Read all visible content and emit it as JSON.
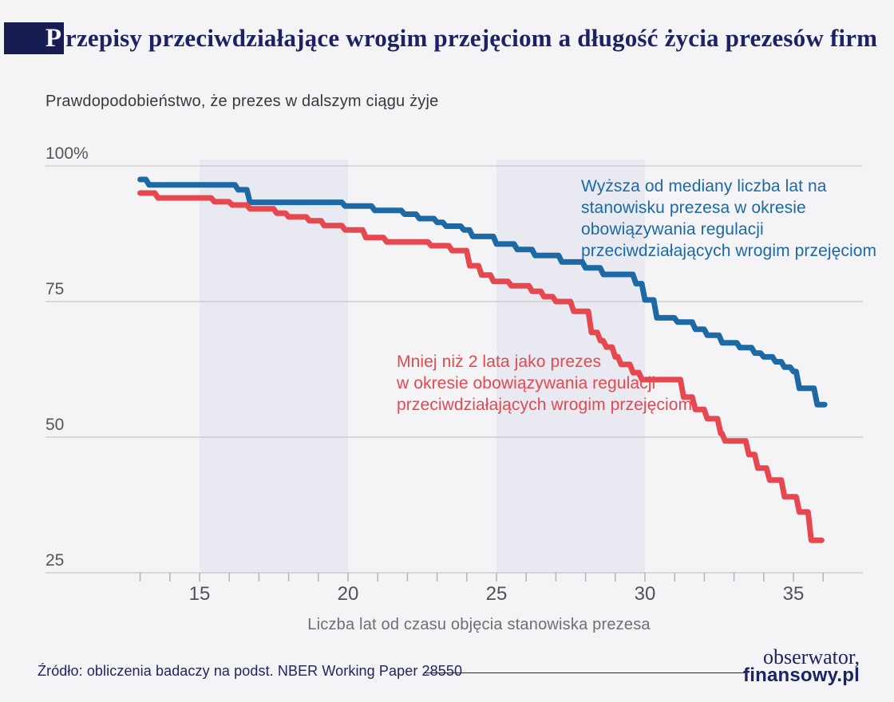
{
  "header": {
    "title_first_letter": "P",
    "title_rest": "rzepisy przeciwdziałające wrogim przejęciom a długość życia prezesów firm",
    "subtitle": "Prawdopodobieństwo, że prezes w dalszym ciągu żyje"
  },
  "chart_data": {
    "type": "line",
    "subtype": "step-survival-curves",
    "title": "Prawdopodobieństwo, że prezes w dalszym ciągu żyje",
    "xlabel": "Liczba lat od czasu objęcia stanowiska prezesa",
    "ylabel": "%",
    "xlim": [
      12.8,
      37.3
    ],
    "ylim": [
      25,
      100
    ],
    "grid": true,
    "y_ticks": [
      {
        "label": "100%",
        "value": 100
      },
      {
        "label": "75",
        "value": 75
      },
      {
        "label": "50",
        "value": 50
      },
      {
        "label": "25",
        "value": 25
      }
    ],
    "x_ticks_labeled": [
      15,
      20,
      25,
      30,
      35
    ],
    "x_minor_ticks": {
      "from": 13,
      "to": 36,
      "step": 1
    },
    "shaded_bands_years": [
      [
        15,
        20
      ],
      [
        25,
        30
      ]
    ],
    "colors": {
      "blue": "#1c69a6",
      "red": "#e5484f",
      "band": "#e9e9f1",
      "grid": "#c6c6ca",
      "tick": "#b4b4b9"
    },
    "series": [
      {
        "name": "blue",
        "label": "Wyższa od mediany liczba lat na\nstanowisku prezesa w okresie\nobowiązywania regulacji\nprzeciwdziałających wrogim przejęciom",
        "color": "#1c69a6",
        "end_year": 36.05,
        "points": [
          [
            13,
            97.5
          ],
          [
            13.3,
            96.5
          ],
          [
            16.3,
            95.6
          ],
          [
            16.7,
            93.3
          ],
          [
            19.9,
            92.6
          ],
          [
            20.9,
            91.8
          ],
          [
            21.9,
            91.1
          ],
          [
            22.4,
            90.3
          ],
          [
            23,
            89.6
          ],
          [
            23.3,
            88.9
          ],
          [
            23.9,
            88.2
          ],
          [
            24.2,
            87
          ],
          [
            25,
            85.6
          ],
          [
            25.7,
            84.6
          ],
          [
            26.3,
            83.5
          ],
          [
            27.2,
            82.3
          ],
          [
            28,
            81.2
          ],
          [
            28.6,
            80
          ],
          [
            29.7,
            78.3
          ],
          [
            30,
            75.3
          ],
          [
            30.4,
            72
          ],
          [
            31.1,
            71.2
          ],
          [
            31.7,
            69.9
          ],
          [
            32.1,
            68.8
          ],
          [
            32.6,
            67.4
          ],
          [
            33.2,
            66.5
          ],
          [
            33.7,
            65.5
          ],
          [
            34,
            64.8
          ],
          [
            34.4,
            63.9
          ],
          [
            34.7,
            62.9
          ],
          [
            35,
            62.1
          ],
          [
            35.2,
            59
          ],
          [
            35.8,
            56
          ]
        ]
      },
      {
        "name": "red",
        "label": "Mniej niż 2 lata jako prezes\nw okresie obowiązywania regulacji\nprzeciwdziałających wrogim przejęciom",
        "color": "#e5484f",
        "end_year": 35.95,
        "points": [
          [
            13,
            95
          ],
          [
            13.6,
            94.1
          ],
          [
            15.5,
            93.4
          ],
          [
            16.1,
            92.8
          ],
          [
            16.7,
            92.1
          ],
          [
            17.6,
            91.3
          ],
          [
            18,
            90.6
          ],
          [
            18.7,
            89.9
          ],
          [
            19.2,
            89
          ],
          [
            19.9,
            88.2
          ],
          [
            20.6,
            86.8
          ],
          [
            21.3,
            86
          ],
          [
            22.8,
            85.3
          ],
          [
            23.5,
            84.4
          ],
          [
            24.1,
            81.6
          ],
          [
            24.5,
            79.9
          ],
          [
            24.9,
            78.7
          ],
          [
            25.5,
            77.9
          ],
          [
            26.2,
            76.9
          ],
          [
            26.6,
            75.9
          ],
          [
            27,
            75
          ],
          [
            27.6,
            73.2
          ],
          [
            28.2,
            69.3
          ],
          [
            28.5,
            67.8
          ],
          [
            28.7,
            66.6
          ],
          [
            29,
            64.8
          ],
          [
            29.2,
            63.4
          ],
          [
            29.6,
            61.9
          ],
          [
            29.9,
            60.6
          ],
          [
            31.3,
            57.4
          ],
          [
            31.7,
            55.1
          ],
          [
            32.1,
            53.4
          ],
          [
            32.55,
            50.7
          ],
          [
            32.7,
            49.3
          ],
          [
            33.5,
            46.8
          ],
          [
            33.8,
            44.3
          ],
          [
            34.2,
            42.1
          ],
          [
            34.7,
            39
          ],
          [
            35.2,
            36.2
          ],
          [
            35.6,
            31
          ]
        ]
      }
    ]
  },
  "footer": {
    "source": "Źródło: obliczenia badaczy na podst. NBER Working Paper 28550",
    "logo_line1": "obserwator,",
    "logo_line2": "finansowy.pl"
  }
}
